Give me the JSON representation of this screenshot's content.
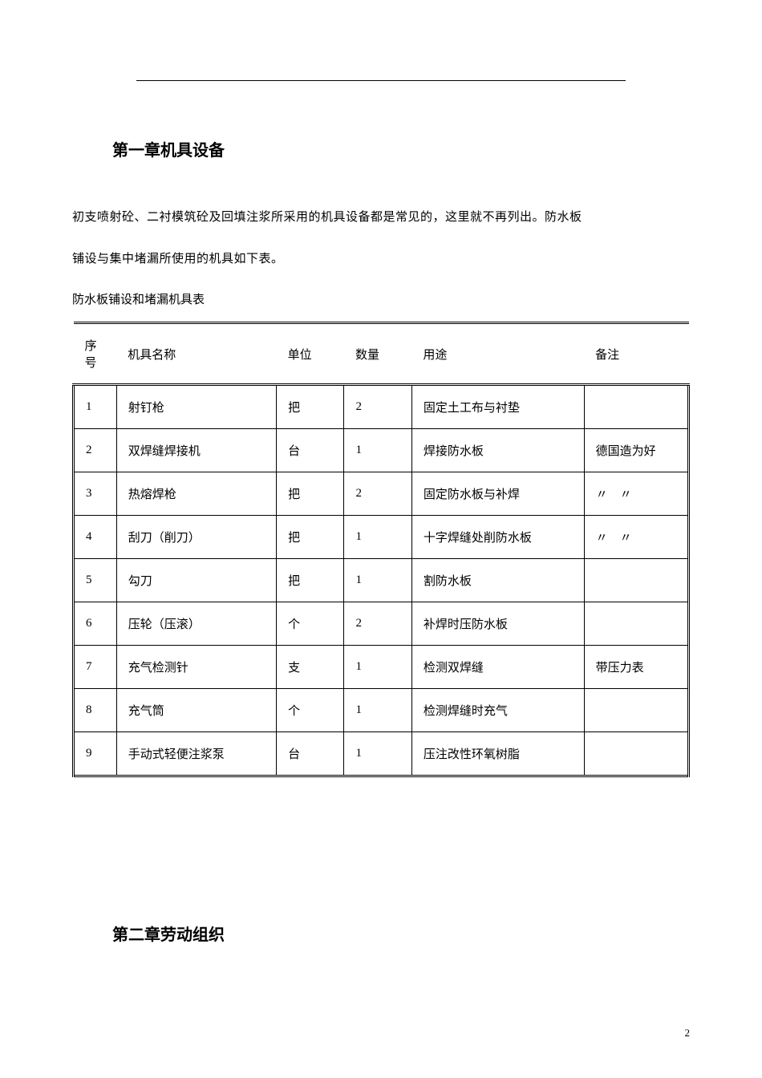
{
  "rule_present": true,
  "chapter1_title": "第一章机具设备",
  "para1": "初支喷射砼、二衬模筑砼及回填注浆所采用的机具设备都是常见的，这里就不再列出。防水板",
  "para2": "铺设与集中堵漏所使用的机具如下表。",
  "table_caption": "防水板铺设和堵漏机具表",
  "table": {
    "type": "table",
    "columns": [
      "序号",
      "机具名称",
      "单位",
      "数量",
      "用途",
      "备注"
    ],
    "col_widths_pct": [
      7,
      26,
      11,
      11,
      28,
      17
    ],
    "border_color": "#000000",
    "header_border": "double",
    "outer_top_bottom": "double",
    "cell_font_size": 15,
    "rows": [
      [
        "1",
        "射钉枪",
        "把",
        "2",
        "固定土工布与衬垫",
        ""
      ],
      [
        "2",
        "双焊缝焊接机",
        "台",
        "1",
        "焊接防水板",
        "德国造为好"
      ],
      [
        "3",
        "热熔焊枪",
        "把",
        "2",
        "固定防水板与补焊",
        "〃　〃"
      ],
      [
        "4",
        "刮刀（削刀）",
        "把",
        "1",
        "十字焊缝处削防水板",
        "〃　〃"
      ],
      [
        "5",
        "勾刀",
        "把",
        "1",
        "割防水板",
        ""
      ],
      [
        "6",
        "压轮（压滚）",
        "个",
        "2",
        "补焊时压防水板",
        ""
      ],
      [
        "7",
        "充气检测针",
        "支",
        "1",
        "检测双焊缝",
        "带压力表"
      ],
      [
        "8",
        "充气筒",
        "个",
        "1",
        "检测焊缝时充气",
        ""
      ],
      [
        "9",
        "手动式轻便注浆泵",
        "台",
        "1",
        "压注改性环氧树脂",
        ""
      ]
    ]
  },
  "chapter2_title": "第二章劳动组织",
  "page_number": "2"
}
